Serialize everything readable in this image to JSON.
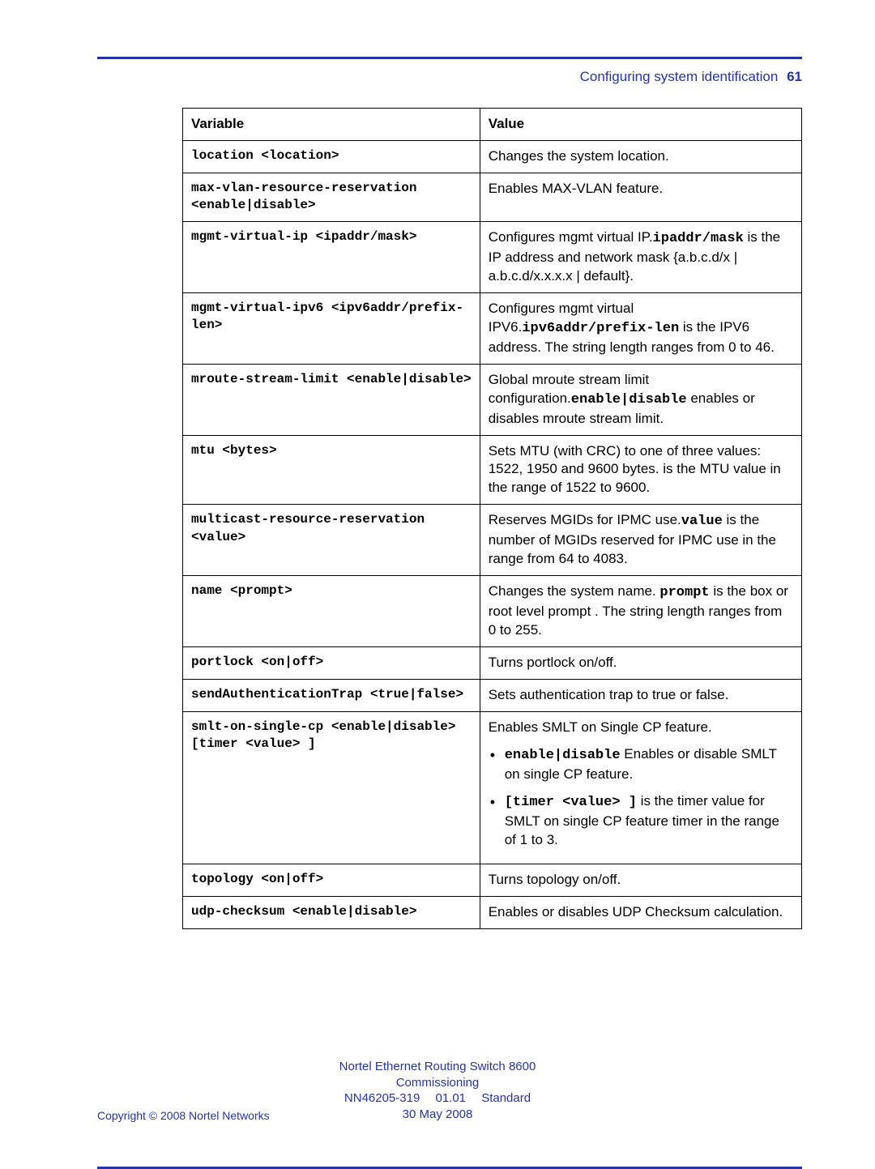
{
  "header": {
    "section_title": "Configuring system identification",
    "page_number": "61"
  },
  "table": {
    "col_variable": "Variable",
    "col_value": "Value",
    "rows": [
      {
        "variable": "location <location>",
        "value_html": "Changes the system location."
      },
      {
        "variable": "max-vlan-resource-reservation <enable|disable>",
        "value_html": "Enables MAX-VLAN feature."
      },
      {
        "variable": "mgmt-virtual-ip <ipaddr/mask>",
        "value_html": "Configures mgmt virtual IP.<span class=\"mono\">ipaddr/mask</span> is the IP address and network mask {a.b.c.d/x | a.b.c.d/x.x.x.x | default}."
      },
      {
        "variable": "mgmt-virtual-ipv6 <ipv6addr/prefix-len>",
        "value_html": "Configures mgmt virtual IPV6.<span class=\"mono\">ipv6addr/prefix-len</span> is the IPV6 address. The string length ranges from 0 to 46."
      },
      {
        "variable": "mroute-stream-limit <enable|disable>",
        "value_html": "Global mroute stream limit configuration.<span class=\"mono\">enable|disable</span> enables or disables mroute stream limit."
      },
      {
        "variable": "mtu <bytes>",
        "value_html": "Sets MTU (with CRC) to one of three values: 1522, 1950 and 9600 bytes. is the MTU value in the range of 1522 to 9600."
      },
      {
        "variable": "multicast-resource-reservation <value>",
        "value_html": "Reserves MGIDs for IPMC use.<span class=\"mono\">value</span> is the number of MGIDs reserved for IPMC use in the range from 64 to 4083."
      },
      {
        "variable": "name <prompt>",
        "value_html": "Changes the system name. <span class=\"mono\">prompt</span> is the box or root level prompt . The string length ranges from 0 to 255."
      },
      {
        "variable": "portlock <on|off>",
        "value_html": "Turns portlock on/off."
      },
      {
        "variable": "sendAuthenticationTrap <true|false>",
        "value_html": "Sets authentication trap to true or false."
      },
      {
        "variable": "smlt-on-single-cp <enable|disable> [timer <value> ]",
        "value_html": "Enables SMLT on Single CP feature.<ul class=\"nobul\"><li><span class=\"mono\">enable|disable</span> Enables or disable SMLT on single CP feature.</li><li><span class=\"mono\">[timer &lt;value&gt; ]</span> is the timer value for SMLT on single CP feature timer in the range of 1 to 3.</li></ul>"
      },
      {
        "variable": "topology <on|off>",
        "value_html": "Turns topology on/off."
      },
      {
        "variable": "udp-checksum <enable|disable>",
        "value_html": "Enables or disables UDP Checksum calculation."
      }
    ]
  },
  "footer": {
    "line1": "Nortel Ethernet Routing Switch 8600",
    "line2": "Commissioning",
    "line3": "NN46205-319  01.01  Standard",
    "line4": "30 May 2008",
    "copyright": "Copyright © 2008 Nortel Networks"
  }
}
